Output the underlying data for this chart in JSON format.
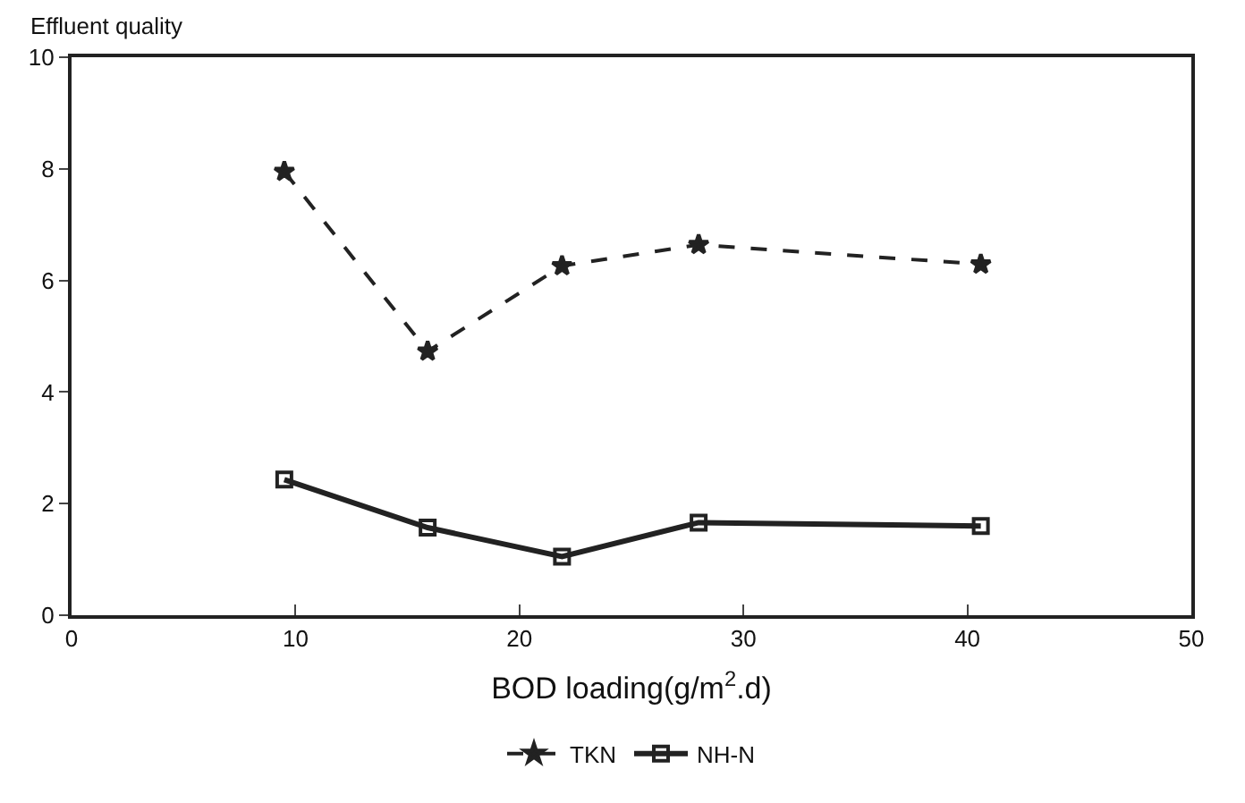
{
  "chart_data": {
    "type": "line",
    "ylabel": "Effluent quality",
    "xlabel": "BOD loading(g/m$^{2}$.d)",
    "x": [
      9.5,
      15.9,
      21.9,
      28.0,
      40.6
    ],
    "series": [
      {
        "name": "TKN",
        "color": "#222222",
        "values": [
          7.95,
          4.73,
          6.26,
          6.64,
          6.29
        ],
        "marker": "star",
        "line_style": "dashed"
      },
      {
        "name": "NH-N",
        "color": "#222222",
        "values": [
          2.43,
          1.57,
          1.05,
          1.66,
          1.6
        ],
        "marker": "square",
        "line_style": "solid"
      }
    ],
    "xlim": [
      0,
      50
    ],
    "xticks": [
      0,
      10,
      20,
      30,
      40,
      50
    ],
    "ylim": [
      0,
      10
    ],
    "yticks": [
      0,
      2,
      4,
      6,
      8,
      10
    ],
    "legend": "bottom"
  }
}
